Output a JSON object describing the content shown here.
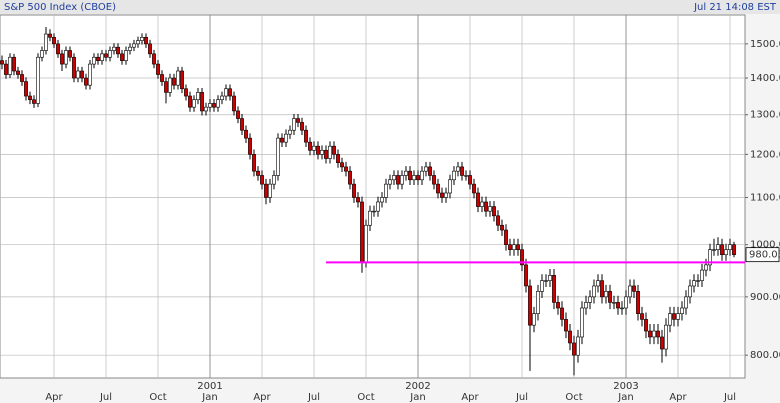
{
  "chart_data": {
    "type": "candlestick",
    "title": "S&P 500 Index (CBOE)",
    "timestamp": "Jul 21 14:08 EST",
    "log_scale": true,
    "grid": true,
    "up_color": "#ffffff",
    "down_color": "#cc0000",
    "ylim": [
      764,
      1590
    ],
    "yticks": [
      {
        "value": 800,
        "label": "800.00"
      },
      {
        "value": 900,
        "label": "900.00"
      },
      {
        "value": 1000,
        "label": "1000.00"
      },
      {
        "value": 1100,
        "label": "1100.00"
      },
      {
        "value": 1200,
        "label": "1200.00"
      },
      {
        "value": 1300,
        "label": "1300.00"
      },
      {
        "value": 1400,
        "label": "1400.00"
      },
      {
        "value": 1500,
        "label": "1500.00"
      }
    ],
    "xlim": [
      -0.5,
      185.75
    ],
    "xticks": [
      {
        "value": 13,
        "label": "Apr"
      },
      {
        "value": 26,
        "label": "Jul"
      },
      {
        "value": 39,
        "label": "Oct"
      },
      {
        "value": 52,
        "label": "Jan"
      },
      {
        "value": 65,
        "label": "Apr"
      },
      {
        "value": 78,
        "label": "Jul"
      },
      {
        "value": 91,
        "label": "Oct"
      },
      {
        "value": 104,
        "label": "Jan"
      },
      {
        "value": 117,
        "label": "Apr"
      },
      {
        "value": 130,
        "label": "Jul"
      },
      {
        "value": 143,
        "label": "Oct"
      },
      {
        "value": 156,
        "label": "Jan"
      },
      {
        "value": 169,
        "label": "Apr"
      },
      {
        "value": 182,
        "label": "Jul"
      }
    ],
    "year_ticks": [
      {
        "value": 52,
        "label": "2001"
      },
      {
        "value": 104,
        "label": "2002"
      },
      {
        "value": 156,
        "label": "2003"
      }
    ],
    "hline": {
      "y": 965,
      "x": [
        81,
        185.75
      ],
      "color": "#ff00ff"
    },
    "ohlc": [
      [
        1450,
        1465,
        1425,
        1440
      ],
      [
        1440,
        1452,
        1398,
        1410
      ],
      [
        1410,
        1472,
        1400,
        1460
      ],
      [
        1460,
        1470,
        1408,
        1420
      ],
      [
        1420,
        1432,
        1398,
        1410
      ],
      [
        1410,
        1422,
        1378,
        1390
      ],
      [
        1390,
        1402,
        1338,
        1350
      ],
      [
        1350,
        1362,
        1328,
        1340
      ],
      [
        1340,
        1352,
        1318,
        1330
      ],
      [
        1330,
        1472,
        1320,
        1460
      ],
      [
        1460,
        1492,
        1448,
        1480
      ],
      [
        1480,
        1552,
        1468,
        1530
      ],
      [
        1530,
        1545,
        1508,
        1520
      ],
      [
        1520,
        1532,
        1488,
        1500
      ],
      [
        1500,
        1512,
        1458,
        1470
      ],
      [
        1470,
        1482,
        1420,
        1440
      ],
      [
        1440,
        1492,
        1428,
        1480
      ],
      [
        1480,
        1492,
        1448,
        1460
      ],
      [
        1460,
        1472,
        1388,
        1400
      ],
      [
        1400,
        1432,
        1388,
        1420
      ],
      [
        1420,
        1432,
        1388,
        1400
      ],
      [
        1400,
        1412,
        1368,
        1380
      ],
      [
        1380,
        1452,
        1368,
        1440
      ],
      [
        1440,
        1472,
        1428,
        1460
      ],
      [
        1460,
        1472,
        1438,
        1450
      ],
      [
        1450,
        1482,
        1438,
        1470
      ],
      [
        1470,
        1482,
        1448,
        1460
      ],
      [
        1460,
        1492,
        1448,
        1480
      ],
      [
        1480,
        1502,
        1468,
        1490
      ],
      [
        1490,
        1502,
        1458,
        1470
      ],
      [
        1470,
        1482,
        1438,
        1450
      ],
      [
        1450,
        1492,
        1438,
        1480
      ],
      [
        1480,
        1502,
        1468,
        1490
      ],
      [
        1490,
        1512,
        1478,
        1500
      ],
      [
        1500,
        1522,
        1488,
        1510
      ],
      [
        1510,
        1532,
        1498,
        1520
      ],
      [
        1520,
        1532,
        1488,
        1500
      ],
      [
        1500,
        1512,
        1458,
        1470
      ],
      [
        1470,
        1482,
        1428,
        1440
      ],
      [
        1440,
        1452,
        1398,
        1410
      ],
      [
        1410,
        1422,
        1378,
        1390
      ],
      [
        1390,
        1402,
        1330,
        1360
      ],
      [
        1360,
        1412,
        1348,
        1400
      ],
      [
        1400,
        1412,
        1368,
        1380
      ],
      [
        1380,
        1432,
        1368,
        1420
      ],
      [
        1420,
        1432,
        1358,
        1370
      ],
      [
        1370,
        1382,
        1338,
        1350
      ],
      [
        1350,
        1362,
        1308,
        1320
      ],
      [
        1320,
        1352,
        1308,
        1340
      ],
      [
        1340,
        1372,
        1328,
        1360
      ],
      [
        1360,
        1372,
        1298,
        1310
      ],
      [
        1310,
        1332,
        1298,
        1320
      ],
      [
        1320,
        1342,
        1308,
        1330
      ],
      [
        1330,
        1342,
        1308,
        1320
      ],
      [
        1320,
        1352,
        1308,
        1340
      ],
      [
        1340,
        1362,
        1328,
        1350
      ],
      [
        1350,
        1382,
        1338,
        1370
      ],
      [
        1370,
        1382,
        1338,
        1350
      ],
      [
        1350,
        1362,
        1298,
        1310
      ],
      [
        1310,
        1322,
        1278,
        1290
      ],
      [
        1290,
        1302,
        1248,
        1260
      ],
      [
        1260,
        1272,
        1228,
        1240
      ],
      [
        1240,
        1252,
        1188,
        1200
      ],
      [
        1200,
        1212,
        1148,
        1160
      ],
      [
        1160,
        1172,
        1138,
        1150
      ],
      [
        1150,
        1162,
        1118,
        1130
      ],
      [
        1130,
        1142,
        1085,
        1100
      ],
      [
        1100,
        1142,
        1088,
        1130
      ],
      [
        1130,
        1162,
        1118,
        1150
      ],
      [
        1150,
        1252,
        1138,
        1240
      ],
      [
        1240,
        1252,
        1218,
        1230
      ],
      [
        1230,
        1262,
        1218,
        1250
      ],
      [
        1250,
        1272,
        1238,
        1260
      ],
      [
        1260,
        1302,
        1248,
        1290
      ],
      [
        1290,
        1302,
        1268,
        1280
      ],
      [
        1280,
        1292,
        1248,
        1260
      ],
      [
        1260,
        1272,
        1218,
        1230
      ],
      [
        1230,
        1242,
        1198,
        1210
      ],
      [
        1210,
        1232,
        1198,
        1220
      ],
      [
        1220,
        1232,
        1188,
        1200
      ],
      [
        1200,
        1222,
        1188,
        1210
      ],
      [
        1210,
        1222,
        1178,
        1190
      ],
      [
        1190,
        1232,
        1178,
        1220
      ],
      [
        1220,
        1232,
        1188,
        1200
      ],
      [
        1200,
        1212,
        1168,
        1180
      ],
      [
        1180,
        1192,
        1158,
        1170
      ],
      [
        1170,
        1182,
        1148,
        1160
      ],
      [
        1160,
        1172,
        1118,
        1130
      ],
      [
        1130,
        1142,
        1088,
        1100
      ],
      [
        1100,
        1112,
        1078,
        1090
      ],
      [
        1090,
        1102,
        945,
        965
      ],
      [
        965,
        1052,
        955,
        1040
      ],
      [
        1040,
        1082,
        1028,
        1070
      ],
      [
        1070,
        1082,
        1058,
        1070
      ],
      [
        1070,
        1102,
        1058,
        1090
      ],
      [
        1090,
        1112,
        1078,
        1100
      ],
      [
        1100,
        1142,
        1088,
        1130
      ],
      [
        1130,
        1152,
        1118,
        1140
      ],
      [
        1140,
        1162,
        1128,
        1150
      ],
      [
        1150,
        1162,
        1118,
        1130
      ],
      [
        1130,
        1162,
        1118,
        1150
      ],
      [
        1150,
        1172,
        1138,
        1160
      ],
      [
        1160,
        1172,
        1128,
        1140
      ],
      [
        1140,
        1162,
        1128,
        1150
      ],
      [
        1150,
        1162,
        1128,
        1140
      ],
      [
        1140,
        1172,
        1128,
        1160
      ],
      [
        1160,
        1182,
        1148,
        1170
      ],
      [
        1170,
        1182,
        1138,
        1150
      ],
      [
        1150,
        1162,
        1118,
        1130
      ],
      [
        1130,
        1142,
        1098,
        1110
      ],
      [
        1110,
        1122,
        1088,
        1100
      ],
      [
        1100,
        1122,
        1088,
        1110
      ],
      [
        1110,
        1152,
        1098,
        1140
      ],
      [
        1140,
        1172,
        1128,
        1160
      ],
      [
        1160,
        1182,
        1148,
        1170
      ],
      [
        1170,
        1182,
        1138,
        1150
      ],
      [
        1150,
        1162,
        1138,
        1150
      ],
      [
        1150,
        1162,
        1118,
        1130
      ],
      [
        1130,
        1142,
        1098,
        1110
      ],
      [
        1110,
        1122,
        1068,
        1080
      ],
      [
        1080,
        1102,
        1068,
        1090
      ],
      [
        1090,
        1102,
        1058,
        1070
      ],
      [
        1070,
        1092,
        1058,
        1080
      ],
      [
        1080,
        1092,
        1048,
        1060
      ],
      [
        1060,
        1072,
        1028,
        1040
      ],
      [
        1040,
        1052,
        1018,
        1030
      ],
      [
        1030,
        1042,
        988,
        1000
      ],
      [
        1000,
        1012,
        978,
        990
      ],
      [
        990,
        1012,
        978,
        1000
      ],
      [
        1000,
        1012,
        978,
        990
      ],
      [
        990,
        1002,
        948,
        960
      ],
      [
        960,
        972,
        908,
        920
      ],
      [
        920,
        932,
        775,
        850
      ],
      [
        850,
        882,
        838,
        870
      ],
      [
        870,
        922,
        858,
        910
      ],
      [
        910,
        942,
        898,
        930
      ],
      [
        930,
        942,
        918,
        930
      ],
      [
        930,
        952,
        918,
        940
      ],
      [
        940,
        952,
        878,
        890
      ],
      [
        890,
        902,
        868,
        880
      ],
      [
        880,
        892,
        848,
        860
      ],
      [
        860,
        872,
        828,
        840
      ],
      [
        840,
        852,
        808,
        820
      ],
      [
        820,
        832,
        768,
        800
      ],
      [
        800,
        842,
        788,
        830
      ],
      [
        830,
        892,
        818,
        880
      ],
      [
        880,
        902,
        868,
        890
      ],
      [
        890,
        912,
        878,
        900
      ],
      [
        900,
        932,
        888,
        920
      ],
      [
        920,
        942,
        908,
        930
      ],
      [
        930,
        942,
        888,
        900
      ],
      [
        900,
        922,
        888,
        910
      ],
      [
        910,
        922,
        878,
        890
      ],
      [
        890,
        902,
        878,
        890
      ],
      [
        890,
        902,
        868,
        880
      ],
      [
        880,
        892,
        868,
        880
      ],
      [
        880,
        912,
        868,
        900
      ],
      [
        900,
        932,
        888,
        920
      ],
      [
        920,
        932,
        898,
        910
      ],
      [
        910,
        922,
        858,
        870
      ],
      [
        870,
        882,
        848,
        860
      ],
      [
        860,
        872,
        828,
        840
      ],
      [
        840,
        852,
        818,
        830
      ],
      [
        830,
        852,
        818,
        840
      ],
      [
        840,
        852,
        818,
        830
      ],
      [
        830,
        842,
        788,
        810
      ],
      [
        810,
        862,
        798,
        850
      ],
      [
        850,
        882,
        838,
        870
      ],
      [
        870,
        882,
        848,
        860
      ],
      [
        860,
        882,
        848,
        870
      ],
      [
        870,
        892,
        858,
        880
      ],
      [
        880,
        912,
        868,
        900
      ],
      [
        900,
        932,
        888,
        920
      ],
      [
        920,
        942,
        908,
        930
      ],
      [
        930,
        942,
        918,
        930
      ],
      [
        930,
        962,
        918,
        950
      ],
      [
        950,
        972,
        938,
        960
      ],
      [
        960,
        1002,
        948,
        990
      ],
      [
        990,
        1012,
        978,
        990
      ],
      [
        990,
        1015,
        978,
        1000
      ],
      [
        1000,
        1012,
        968,
        980
      ],
      [
        980,
        1002,
        968,
        990
      ],
      [
        990,
        1012,
        978,
        1000
      ],
      [
        1000,
        1006,
        975,
        980.03
      ]
    ]
  }
}
